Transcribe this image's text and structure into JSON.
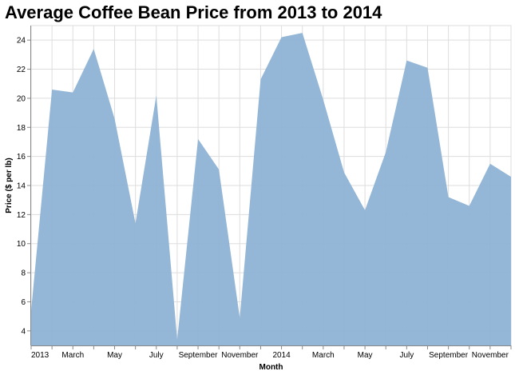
{
  "chart_data": {
    "type": "area",
    "title": "Average Coffee Bean Price from 2013 to 2014",
    "xlabel": "Month",
    "ylabel": "Price ($ per lb)",
    "x": [
      "2013-01",
      "2013-02",
      "2013-03",
      "2013-04",
      "2013-05",
      "2013-06",
      "2013-07",
      "2013-08",
      "2013-09",
      "2013-10",
      "2013-11",
      "2013-12",
      "2014-01",
      "2014-02",
      "2014-03",
      "2014-04",
      "2014-05",
      "2014-06",
      "2014-07",
      "2014-08",
      "2014-09",
      "2014-10",
      "2014-11",
      "2014-12"
    ],
    "values": [
      5.4,
      20.6,
      20.4,
      23.4,
      18.6,
      11.4,
      20.2,
      3.4,
      17.2,
      15.1,
      4.9,
      21.3,
      24.2,
      24.5,
      19.9,
      14.9,
      12.3,
      16.3,
      22.6,
      22.1,
      13.2,
      12.6,
      15.5,
      14.6
    ],
    "ylim": [
      3,
      25
    ],
    "yticks": [
      4,
      6,
      8,
      10,
      12,
      14,
      16,
      18,
      20,
      22,
      24
    ],
    "xtick_labels": [
      "2013",
      "March",
      "May",
      "July",
      "September",
      "November",
      "2014",
      "March",
      "May",
      "July",
      "September",
      "November"
    ],
    "grid": true,
    "color": "#8fb3d5"
  }
}
